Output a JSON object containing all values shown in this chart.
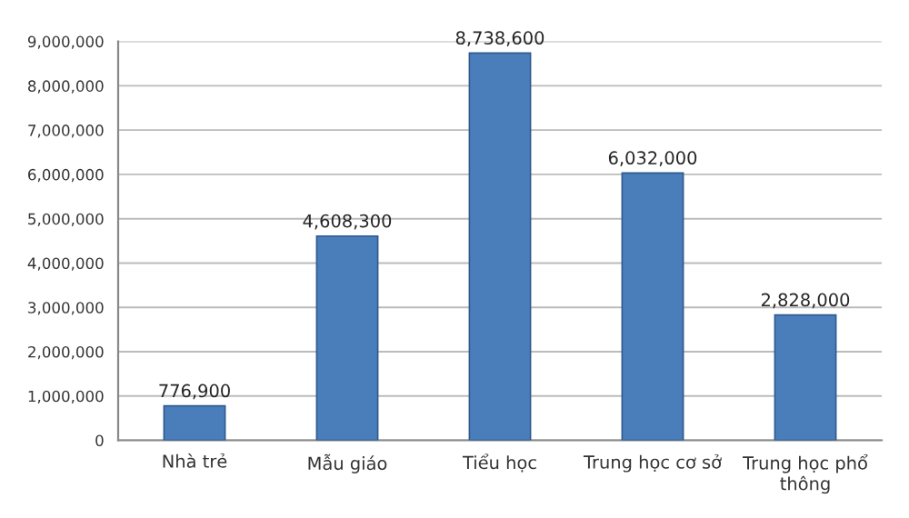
{
  "chart_data": {
    "type": "bar",
    "categories": [
      "Nhà trẻ",
      "Mẫu giáo",
      "Tiểu học",
      "Trung học cơ sở",
      "Trung học phổ\nthông"
    ],
    "values": [
      776900,
      4608300,
      8738600,
      6032000,
      2828000
    ],
    "value_labels": [
      "776,900",
      "4,608,300",
      "8,738,600",
      "6,032,000",
      "2,828,000"
    ],
    "color": "#4a7ebb",
    "ylim": [
      0,
      9000000
    ],
    "yticks": [
      {
        "value": 0,
        "label": "0"
      },
      {
        "value": 1000000,
        "label": "1,000,000"
      },
      {
        "value": 2000000,
        "label": "2,000,000"
      },
      {
        "value": 3000000,
        "label": "3,000,000"
      },
      {
        "value": 4000000,
        "label": "4,000,000"
      },
      {
        "value": 5000000,
        "label": "5,000,000"
      },
      {
        "value": 6000000,
        "label": "6,000,000"
      },
      {
        "value": 7000000,
        "label": "7,000,000"
      },
      {
        "value": 8000000,
        "label": "8,000,000"
      },
      {
        "value": 9000000,
        "label": "9,000,000"
      }
    ],
    "grid": "y"
  }
}
